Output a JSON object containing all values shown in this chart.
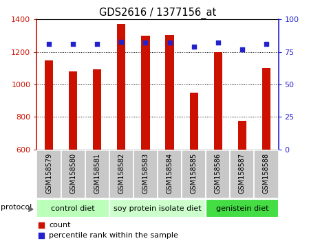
{
  "title": "GDS2616 / 1377156_at",
  "categories": [
    "GSM158579",
    "GSM158580",
    "GSM158581",
    "GSM158582",
    "GSM158583",
    "GSM158584",
    "GSM158585",
    "GSM158586",
    "GSM158587",
    "GSM158588"
  ],
  "counts": [
    1150,
    1080,
    1095,
    1370,
    1300,
    1305,
    950,
    1200,
    775,
    1100
  ],
  "percentile_ranks": [
    81,
    81,
    81,
    83,
    82,
    82,
    79,
    82,
    77,
    81
  ],
  "ylim_left": [
    600,
    1400
  ],
  "ylim_right": [
    0,
    100
  ],
  "yticks_left": [
    600,
    800,
    1000,
    1200,
    1400
  ],
  "yticks_right": [
    0,
    25,
    50,
    75,
    100
  ],
  "bar_color": "#cc1100",
  "dot_color": "#2222cc",
  "grid_color": "#000000",
  "tick_area_bg": "#c8c8c8",
  "groups": [
    {
      "label": "control diet",
      "indices": [
        0,
        1,
        2
      ],
      "color": "#bbffbb"
    },
    {
      "label": "soy protein isolate diet",
      "indices": [
        3,
        4,
        5,
        6
      ],
      "color": "#ccffcc"
    },
    {
      "label": "genistein diet",
      "indices": [
        7,
        8,
        9
      ],
      "color": "#44dd44"
    }
  ],
  "legend_items": [
    {
      "label": "count",
      "color": "#cc1100"
    },
    {
      "label": "percentile rank within the sample",
      "color": "#2222cc"
    }
  ],
  "protocol_label": "protocol",
  "bar_width": 0.35,
  "left_label_color": "#cc1100",
  "right_label_color": "#2222cc",
  "left_spine_color": "#cc1100",
  "right_spine_color": "#2222cc"
}
